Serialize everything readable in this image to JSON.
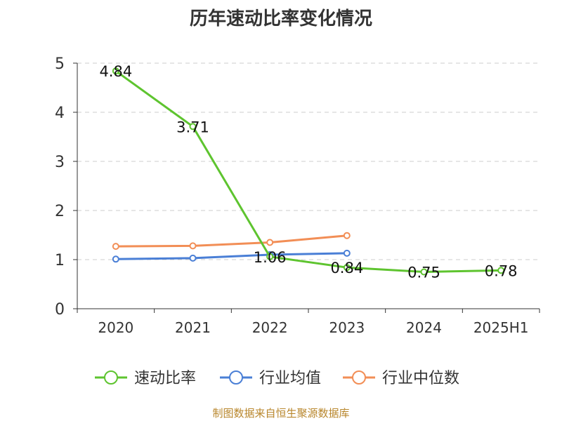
{
  "chart_data": {
    "type": "line",
    "title": "历年速动比率变化情况",
    "xlabel": "",
    "ylabel": "",
    "categories": [
      "2020",
      "2021",
      "2022",
      "2023",
      "2024",
      "2025H1"
    ],
    "ylim": [
      0,
      5
    ],
    "yticks": [
      0,
      1,
      2,
      3,
      4,
      5
    ],
    "grid": true,
    "legend_position": "bottom",
    "series": [
      {
        "name": "速动比率",
        "color": "#5ec42f",
        "values": [
          4.84,
          3.71,
          1.06,
          0.84,
          0.75,
          0.78
        ],
        "show_labels": true
      },
      {
        "name": "行业均值",
        "color": "#4a7fd6",
        "values": [
          1.01,
          1.03,
          1.1,
          1.13,
          null,
          null
        ],
        "show_labels": false
      },
      {
        "name": "行业中位数",
        "color": "#f28e56",
        "values": [
          1.27,
          1.28,
          1.35,
          1.49,
          null,
          null
        ],
        "show_labels": false
      }
    ]
  },
  "source_text": "制图数据来自恒生聚源数据库"
}
